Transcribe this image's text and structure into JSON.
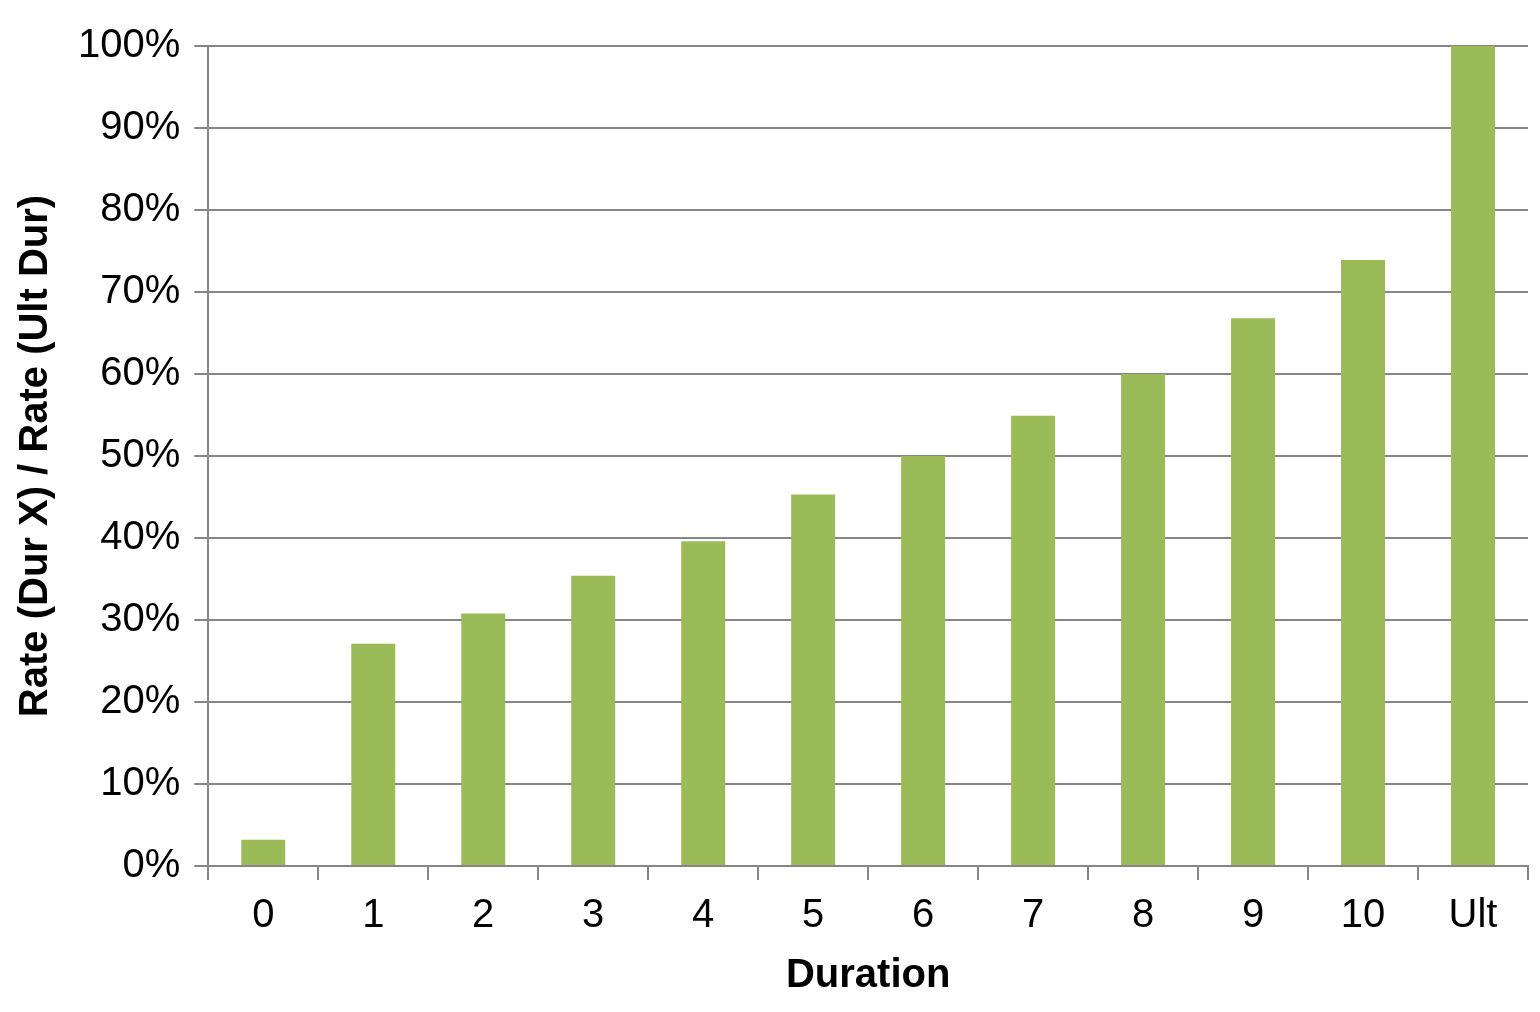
{
  "chart_data": {
    "type": "bar",
    "xlabel": "Duration",
    "ylabel": "Rate (Dur X) / Rate (Ult Dur)",
    "categories": [
      "0",
      "1",
      "2",
      "3",
      "4",
      "5",
      "6",
      "7",
      "8",
      "9",
      "10",
      "Ult"
    ],
    "values": [
      3.2,
      27.1,
      30.8,
      35.4,
      39.6,
      45.3,
      50,
      54.9,
      60,
      66.8,
      73.9,
      100
    ],
    "color": "#9bbb59",
    "ylim": [
      0,
      100
    ],
    "yticks": [
      {
        "value": 0,
        "label": "0%"
      },
      {
        "value": 10,
        "label": "10%"
      },
      {
        "value": 20,
        "label": "20%"
      },
      {
        "value": 30,
        "label": "30%"
      },
      {
        "value": 40,
        "label": "40%"
      },
      {
        "value": 50,
        "label": "50%"
      },
      {
        "value": 60,
        "label": "60%"
      },
      {
        "value": 70,
        "label": "70%"
      },
      {
        "value": 80,
        "label": "80%"
      },
      {
        "value": 90,
        "label": "90%"
      },
      {
        "value": 100,
        "label": "100%"
      }
    ],
    "grid": "y",
    "legend": false
  }
}
